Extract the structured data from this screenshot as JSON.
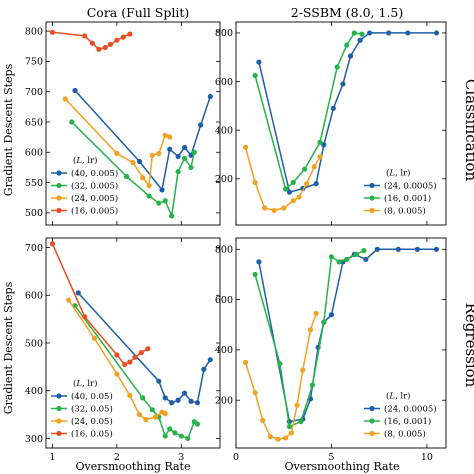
{
  "figure": {
    "col_titles": [
      "Cora (Full Split)",
      "2-SSBM (8.0, 1.5)"
    ],
    "row_titles": [
      "Classification",
      "Regression"
    ],
    "shared_ylabel": "Gradient Descent Steps",
    "shared_xlabel": "Oversmoothing Rate"
  },
  "chart_data": [
    {
      "type": "line",
      "panel": "top-left",
      "title": "Cora (Full Split)",
      "row": "Classification",
      "xlim": [
        0.9,
        3.6
      ],
      "ylim": [
        480,
        815
      ],
      "grid": false,
      "xticks": [
        1,
        2,
        3
      ],
      "yticks": [
        500,
        550,
        600,
        650,
        700,
        750,
        800
      ],
      "legend": {
        "title": "(L, lr)",
        "position": "lower-left"
      },
      "series": [
        {
          "name": "(40, 0.005)",
          "color": "#1f5fa8",
          "points": [
            [
              1.35,
              702
            ],
            [
              2.35,
              585
            ],
            [
              2.7,
              538
            ],
            [
              2.82,
              605
            ],
            [
              2.95,
              593
            ],
            [
              3.05,
              608
            ],
            [
              3.15,
              595
            ],
            [
              3.3,
              645
            ],
            [
              3.45,
              692
            ]
          ]
        },
        {
          "name": "(32, 0.005)",
          "color": "#26b34a",
          "points": [
            [
              1.3,
              650
            ],
            [
              2.15,
              560
            ],
            [
              2.5,
              528
            ],
            [
              2.65,
              516
            ],
            [
              2.75,
              520
            ],
            [
              2.85,
              495
            ],
            [
              2.95,
              568
            ],
            [
              3.05,
              590
            ],
            [
              3.15,
              575
            ],
            [
              3.2,
              600
            ]
          ]
        },
        {
          "name": "(24, 0.005)",
          "color": "#f5a01e",
          "points": [
            [
              1.2,
              688
            ],
            [
              2.0,
              598
            ],
            [
              2.25,
              583
            ],
            [
              2.4,
              558
            ],
            [
              2.5,
              545
            ],
            [
              2.55,
              595
            ],
            [
              2.65,
              598
            ],
            [
              2.75,
              628
            ],
            [
              2.82,
              625
            ]
          ]
        },
        {
          "name": "(16, 0.005)",
          "color": "#e84e24",
          "points": [
            [
              1.0,
              798
            ],
            [
              1.5,
              792
            ],
            [
              1.62,
              780
            ],
            [
              1.72,
              770
            ],
            [
              1.82,
              773
            ],
            [
              1.9,
              778
            ],
            [
              2.0,
              785
            ],
            [
              2.1,
              790
            ],
            [
              2.2,
              795
            ]
          ]
        }
      ]
    },
    {
      "type": "line",
      "panel": "top-right",
      "title": "2-SSBM (8.0, 1.5)",
      "row": "Classification",
      "xlim": [
        0.0,
        11.0
      ],
      "ylim": [
        10,
        845
      ],
      "grid": false,
      "xticks": [
        0,
        5,
        10
      ],
      "yticks": [
        200,
        400,
        600,
        800
      ],
      "legend": {
        "title": "(L, lr)",
        "position": "lower-right"
      },
      "series": [
        {
          "name": "(24, 0.0005)",
          "color": "#1f5fa8",
          "points": [
            [
              1.2,
              680
            ],
            [
              2.8,
              145
            ],
            [
              3.5,
              160
            ],
            [
              4.2,
              180
            ],
            [
              4.6,
              340
            ],
            [
              5.1,
              490
            ],
            [
              5.6,
              590
            ],
            [
              6.0,
              705
            ],
            [
              6.5,
              770
            ],
            [
              7.0,
              800
            ],
            [
              8.0,
              800
            ],
            [
              9.0,
              800
            ],
            [
              10.5,
              800
            ]
          ]
        },
        {
          "name": "(16, 0.001)",
          "color": "#26b34a",
          "points": [
            [
              1.0,
              625
            ],
            [
              2.6,
              158
            ],
            [
              3.0,
              185
            ],
            [
              3.6,
              240
            ],
            [
              4.4,
              350
            ],
            [
              5.3,
              660
            ],
            [
              5.8,
              750
            ],
            [
              6.2,
              800
            ],
            [
              6.6,
              795
            ]
          ]
        },
        {
          "name": "(8, 0.005)",
          "color": "#f5a01e",
          "points": [
            [
              0.5,
              330
            ],
            [
              1.0,
              185
            ],
            [
              1.5,
              80
            ],
            [
              2.0,
              70
            ],
            [
              2.5,
              80
            ],
            [
              3.0,
              110
            ],
            [
              3.3,
              125
            ],
            [
              3.7,
              180
            ],
            [
              4.1,
              250
            ],
            [
              4.4,
              290
            ]
          ]
        }
      ]
    },
    {
      "type": "line",
      "panel": "bottom-left",
      "title": "",
      "row": "Regression",
      "xlim": [
        0.9,
        3.6
      ],
      "ylim": [
        280,
        720
      ],
      "grid": false,
      "xticks": [
        1,
        2,
        3
      ],
      "yticks": [
        300,
        400,
        500,
        600,
        700
      ],
      "legend": {
        "title": "(L, lr)",
        "position": "lower-left"
      },
      "series": [
        {
          "name": "(40, 0.05)",
          "color": "#1f5fa8",
          "points": [
            [
              1.4,
              605
            ],
            [
              2.65,
              420
            ],
            [
              2.75,
              385
            ],
            [
              2.85,
              375
            ],
            [
              2.95,
              380
            ],
            [
              3.05,
              395
            ],
            [
              3.15,
              378
            ],
            [
              3.25,
              375
            ],
            [
              3.35,
              445
            ],
            [
              3.45,
              465
            ]
          ]
        },
        {
          "name": "(32, 0.05)",
          "color": "#26b34a",
          "points": [
            [
              1.35,
              578
            ],
            [
              2.4,
              385
            ],
            [
              2.55,
              360
            ],
            [
              2.65,
              345
            ],
            [
              2.75,
              305
            ],
            [
              2.82,
              320
            ],
            [
              2.9,
              312
            ],
            [
              3.0,
              305
            ],
            [
              3.1,
              300
            ],
            [
              3.2,
              335
            ],
            [
              3.25,
              330
            ]
          ]
        },
        {
          "name": "(24, 0.05)",
          "color": "#f5a01e",
          "points": [
            [
              1.25,
              590
            ],
            [
              1.65,
              510
            ],
            [
              2.0,
              435
            ],
            [
              2.2,
              390
            ],
            [
              2.35,
              350
            ],
            [
              2.45,
              340
            ],
            [
              2.6,
              345
            ],
            [
              2.7,
              355
            ],
            [
              2.75,
              352
            ]
          ]
        },
        {
          "name": "(16, 0.05)",
          "color": "#e84e24",
          "points": [
            [
              1.0,
              708
            ],
            [
              1.5,
              555
            ],
            [
              2.0,
              475
            ],
            [
              2.12,
              455
            ],
            [
              2.2,
              460
            ],
            [
              2.28,
              470
            ],
            [
              2.38,
              480
            ],
            [
              2.48,
              488
            ]
          ]
        }
      ]
    },
    {
      "type": "line",
      "panel": "bottom-right",
      "title": "",
      "row": "Regression",
      "xlim": [
        0.0,
        11.0
      ],
      "ylim": [
        10,
        845
      ],
      "grid": false,
      "xticks": [
        0,
        5,
        10
      ],
      "yticks": [
        200,
        400,
        600,
        800
      ],
      "legend": {
        "title": "(L, lr)",
        "position": "lower-right"
      },
      "series": [
        {
          "name": "(24, 0.0005)",
          "color": "#1f5fa8",
          "points": [
            [
              1.2,
              750
            ],
            [
              2.8,
              115
            ],
            [
              3.5,
              125
            ],
            [
              3.9,
              205
            ],
            [
              4.3,
              410
            ],
            [
              4.6,
              510
            ],
            [
              5.0,
              540
            ],
            [
              5.6,
              750
            ],
            [
              6.2,
              780
            ],
            [
              6.8,
              760
            ],
            [
              7.4,
              800
            ],
            [
              8.5,
              800
            ],
            [
              9.5,
              800
            ],
            [
              10.5,
              800
            ]
          ]
        },
        {
          "name": "(16, 0.001)",
          "color": "#26b34a",
          "points": [
            [
              1.0,
              700
            ],
            [
              2.3,
              345
            ],
            [
              2.8,
              95
            ],
            [
              3.4,
              115
            ],
            [
              4.0,
              260
            ],
            [
              4.6,
              510
            ],
            [
              5.0,
              770
            ],
            [
              5.4,
              750
            ],
            [
              5.8,
              760
            ],
            [
              6.3,
              780
            ],
            [
              6.7,
              795
            ]
          ]
        },
        {
          "name": "(8, 0.005)",
          "color": "#f5a01e",
          "points": [
            [
              0.5,
              350
            ],
            [
              1.0,
              230
            ],
            [
              1.4,
              120
            ],
            [
              1.8,
              55
            ],
            [
              2.2,
              45
            ],
            [
              2.6,
              50
            ],
            [
              2.9,
              70
            ],
            [
              3.2,
              180
            ],
            [
              3.5,
              320
            ],
            [
              3.9,
              480
            ],
            [
              4.2,
              545
            ]
          ]
        }
      ]
    }
  ]
}
